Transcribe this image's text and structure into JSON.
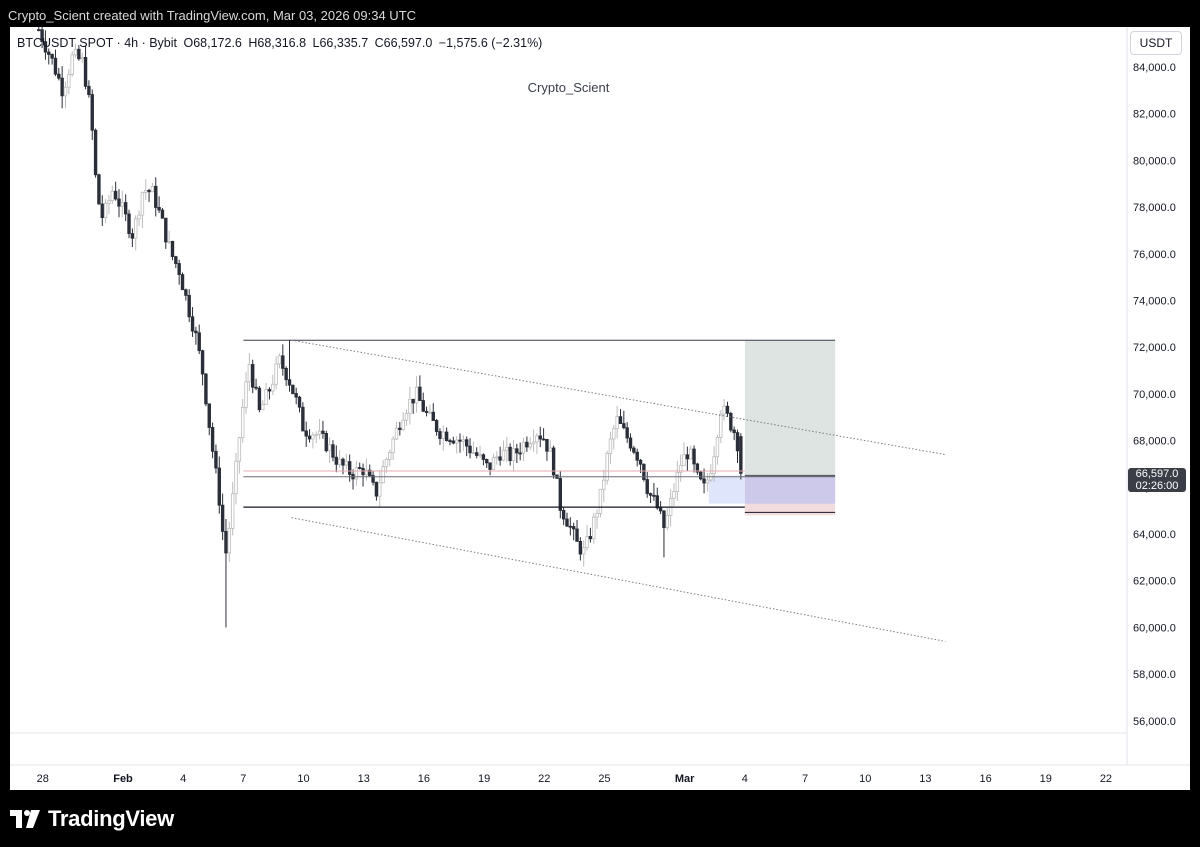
{
  "credit": "Crypto_Scient created with TradingView.com, Mar 03, 2026 09:34 UTC",
  "legend": {
    "symbol": "BTCUSDT SPOT · 4h · Bybit",
    "open": "O68,172.6",
    "high": "H68,316.8",
    "low": "L66,335.7",
    "close": "C66,597.0",
    "change": "−1,575.6 (−2.31%)"
  },
  "watermark": "Crypto_Scient",
  "currency": "USDT",
  "last_price": "66,597.0",
  "countdown": "02:26:00",
  "brand": "TradingView",
  "chart_data": {
    "type": "candlestick",
    "symbol": "BTCUSDT",
    "timeframe": "4h",
    "ylim": [
      55000,
      85500
    ],
    "y_ticks": [
      56000,
      58000,
      60000,
      62000,
      64000,
      66000,
      68000,
      70000,
      72000,
      74000,
      76000,
      78000,
      80000,
      82000,
      84000
    ],
    "y_tick_labels": [
      "56,000.0",
      "58,000.0",
      "60,000.0",
      "62,000.0",
      "64,000.0",
      "66,000.0",
      "68,000.0",
      "70,000.0",
      "72,000.0",
      "74,000.0",
      "76,000.0",
      "78,000.0",
      "80,000.0",
      "82,000.0",
      "84,000.0"
    ],
    "x_tick_labels": [
      "28",
      "Feb",
      "4",
      "7",
      "10",
      "13",
      "16",
      "19",
      "22",
      "25",
      "Mar",
      "4",
      "7",
      "10",
      "13",
      "16",
      "19",
      "22"
    ],
    "x_tick_bold": [
      false,
      true,
      false,
      false,
      false,
      false,
      false,
      false,
      false,
      false,
      true,
      false,
      false,
      false,
      false,
      false,
      false,
      false
    ],
    "x_tick_days": [
      -4,
      0,
      3,
      6,
      9,
      12,
      15,
      18,
      21,
      24,
      28,
      31,
      34,
      37,
      40,
      43,
      46,
      49
    ],
    "price_path": [
      [
        -4.2,
        85600
      ],
      [
        -3.5,
        84200
      ],
      [
        -3.0,
        83000
      ],
      [
        -2.5,
        84500
      ],
      [
        -2.0,
        84200
      ],
      [
        -1.6,
        82000
      ],
      [
        -1.3,
        78500
      ],
      [
        -1.0,
        77500
      ],
      [
        -0.5,
        78800
      ],
      [
        0.0,
        77800
      ],
      [
        0.5,
        76800
      ],
      [
        1.0,
        78800
      ],
      [
        1.5,
        78600
      ],
      [
        2.0,
        77200
      ],
      [
        2.4,
        76000
      ],
      [
        2.8,
        75300
      ],
      [
        3.2,
        73900
      ],
      [
        3.6,
        72600
      ],
      [
        4.0,
        70800
      ],
      [
        4.4,
        68000
      ],
      [
        4.8,
        65500
      ],
      [
        5.1,
        63000
      ],
      [
        5.3,
        64300
      ],
      [
        5.6,
        66500
      ],
      [
        5.9,
        69000
      ],
      [
        6.3,
        71300
      ],
      [
        6.8,
        69200
      ],
      [
        7.3,
        70200
      ],
      [
        7.8,
        71400
      ],
      [
        8.2,
        70800
      ],
      [
        8.6,
        69800
      ],
      [
        9.0,
        68500
      ],
      [
        9.6,
        68300
      ],
      [
        10.2,
        67800
      ],
      [
        10.8,
        67000
      ],
      [
        11.4,
        66600
      ],
      [
        12.0,
        66800
      ],
      [
        12.6,
        65700
      ],
      [
        13.0,
        66900
      ],
      [
        13.5,
        68100
      ],
      [
        14.0,
        69300
      ],
      [
        14.6,
        70000
      ],
      [
        15.2,
        69000
      ],
      [
        15.8,
        68400
      ],
      [
        16.4,
        68200
      ],
      [
        17.0,
        67900
      ],
      [
        17.6,
        67400
      ],
      [
        18.2,
        66800
      ],
      [
        18.8,
        67500
      ],
      [
        19.4,
        67300
      ],
      [
        20.0,
        67900
      ],
      [
        20.6,
        68400
      ],
      [
        21.0,
        68100
      ],
      [
        21.4,
        67200
      ],
      [
        21.8,
        65200
      ],
      [
        22.2,
        64500
      ],
      [
        22.6,
        63600
      ],
      [
        23.0,
        63200
      ],
      [
        23.4,
        64300
      ],
      [
        23.8,
        65600
      ],
      [
        24.2,
        67600
      ],
      [
        24.6,
        68900
      ],
      [
        25.0,
        68300
      ],
      [
        25.4,
        67800
      ],
      [
        25.8,
        67100
      ],
      [
        26.2,
        65800
      ],
      [
        26.6,
        65200
      ],
      [
        27.0,
        64200
      ],
      [
        27.4,
        65700
      ],
      [
        27.8,
        67000
      ],
      [
        28.2,
        67600
      ],
      [
        28.6,
        66400
      ],
      [
        29.0,
        65900
      ],
      [
        29.4,
        67200
      ],
      [
        29.8,
        69400
      ],
      [
        30.2,
        68900
      ],
      [
        30.6,
        68172.6
      ],
      [
        30.8,
        66597
      ]
    ],
    "wick_extremes": [
      {
        "day": 5.1,
        "low": 60000
      },
      {
        "day": 8.3,
        "high": 72300
      },
      {
        "day": 23.0,
        "low": 62600
      },
      {
        "day": 27.0,
        "low": 63000
      }
    ],
    "drawings": {
      "range_top": 72300,
      "range_bottom": 65150,
      "range_mid_lines": [
        66700,
        66450
      ],
      "channel_upper": {
        "from": [
          8.4,
          72300
        ],
        "to": [
          41.0,
          67400
        ]
      },
      "channel_lower": {
        "from": [
          8.4,
          64700
        ],
        "to": [
          41.0,
          59400
        ]
      },
      "position": {
        "entry": 66500,
        "target": 72300,
        "stop": 64800,
        "start_day": 31.0,
        "end_day": 35.5,
        "pre_zone": {
          "start_day": 29.2,
          "high": 66500,
          "low": 65300
        }
      }
    }
  }
}
